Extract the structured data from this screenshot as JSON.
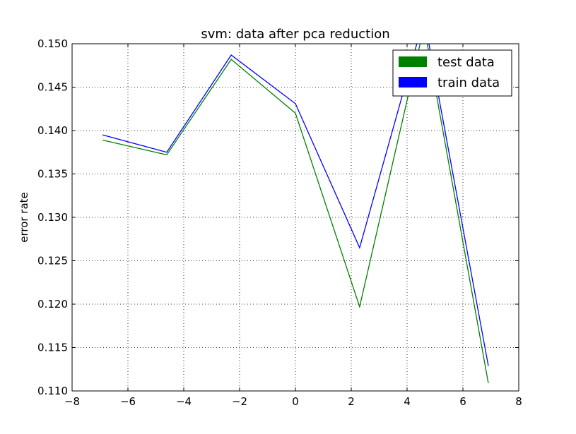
{
  "chart_data": {
    "type": "line",
    "title": "svm: data after pca reduction",
    "xlabel": "",
    "ylabel": "error rate",
    "xlim": [
      -8,
      8
    ],
    "ylim": [
      0.11,
      0.15
    ],
    "xticks": [
      "−8",
      "−6",
      "−4",
      "−2",
      "0",
      "2",
      "4",
      "6",
      "8"
    ],
    "yticks": [
      "0.110",
      "0.115",
      "0.120",
      "0.125",
      "0.130",
      "0.135",
      "0.140",
      "0.145",
      "0.150"
    ],
    "grid": true,
    "legend_position": "top-right",
    "x": [
      -6.91,
      -4.61,
      -2.3,
      0.0,
      2.3,
      4.61,
      6.91
    ],
    "series": [
      {
        "name": "test data",
        "color": "#008000",
        "values": [
          0.1389,
          0.1372,
          0.1482,
          0.142,
          0.1197,
          0.152,
          0.1109
        ]
      },
      {
        "name": "train data",
        "color": "#0000ff",
        "values": [
          0.1395,
          0.1375,
          0.1487,
          0.1431,
          0.1265,
          0.153,
          0.1129
        ]
      }
    ]
  }
}
